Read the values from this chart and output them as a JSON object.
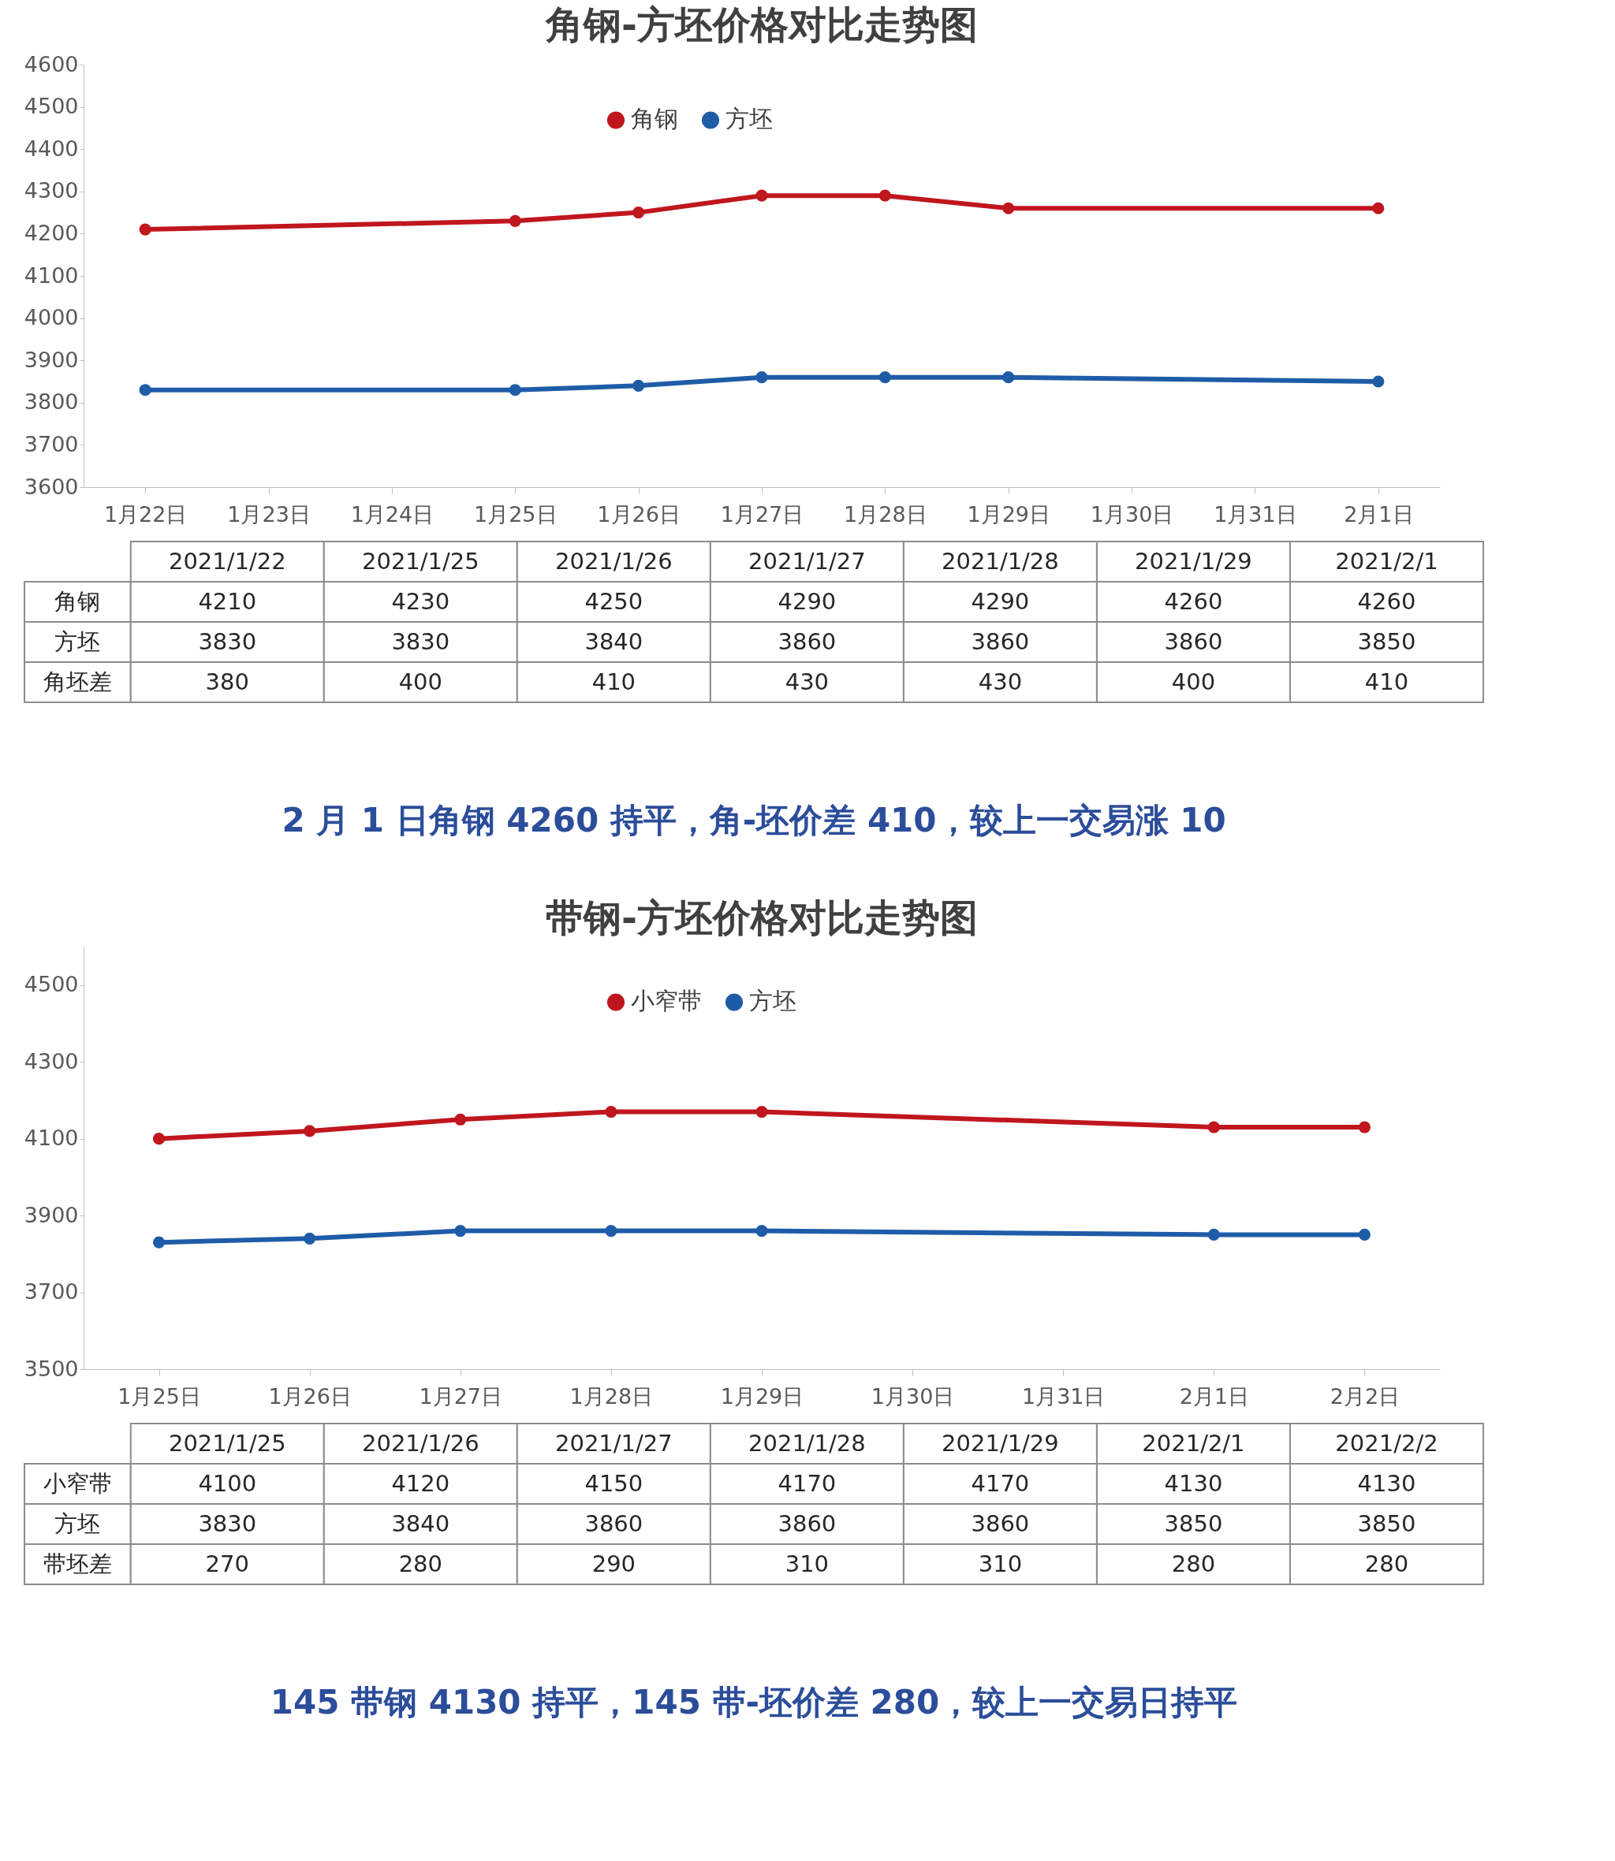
{
  "chart_data": [
    {
      "type": "line",
      "title": "角钢-方坯价格对比走势图",
      "categories": [
        "1月22日",
        "1月23日",
        "1月24日",
        "1月25日",
        "1月26日",
        "1月27日",
        "1月28日",
        "1月29日",
        "1月30日",
        "1月31日",
        "2月1日"
      ],
      "series": [
        {
          "name": "角钢",
          "color": "#c0161e",
          "x": [
            "1月22日",
            "1月25日",
            "1月26日",
            "1月27日",
            "1月28日",
            "1月29日",
            "2月1日"
          ],
          "values": [
            4210,
            4230,
            4250,
            4290,
            4290,
            4260,
            4260
          ]
        },
        {
          "name": "方坯",
          "color": "#1f5ca8",
          "x": [
            "1月22日",
            "1月25日",
            "1月26日",
            "1月27日",
            "1月28日",
            "1月29日",
            "2月1日"
          ],
          "values": [
            3830,
            3830,
            3840,
            3860,
            3860,
            3860,
            3850
          ]
        }
      ],
      "ylim": [
        3600,
        4600
      ],
      "yticks": [
        3600,
        3700,
        3800,
        3900,
        4000,
        4100,
        4200,
        4300,
        4400,
        4500,
        4600
      ],
      "legend": "top",
      "marker": "circle",
      "line_style": "solid"
    },
    {
      "type": "other",
      "categories": [
        "2021/1/22",
        "2021/1/25",
        "2021/1/26",
        "2021/1/27",
        "2021/1/28",
        "2021/1/29",
        "2021/2/1"
      ],
      "series": [
        {
          "name": "角钢",
          "values": [
            4210,
            4230,
            4250,
            4290,
            4290,
            4260,
            4260
          ]
        },
        {
          "name": "方坯",
          "values": [
            3830,
            3830,
            3840,
            3860,
            3860,
            3860,
            3850
          ]
        },
        {
          "name": "角坯差",
          "values": [
            380,
            400,
            410,
            430,
            430,
            400,
            410
          ]
        }
      ],
      "data_labels": true,
      "legend": "left",
      "annotations": [
        "2 月 1 日角钢 4260 持平，角-坯价差 410，较上一交易涨 10"
      ]
    },
    {
      "type": "line",
      "title": "带钢-方坯价格对比走势图",
      "categories": [
        "1月25日",
        "1月26日",
        "1月27日",
        "1月28日",
        "1月29日",
        "1月30日",
        "1月31日",
        "2月1日",
        "2月2日"
      ],
      "series": [
        {
          "name": "小窄带",
          "color": "#c0161e",
          "x": [
            "1月25日",
            "1月26日",
            "1月27日",
            "1月28日",
            "1月29日",
            "2月1日",
            "2月2日"
          ],
          "values": [
            4100,
            4120,
            4150,
            4170,
            4170,
            4130,
            4130
          ]
        },
        {
          "name": "方坯",
          "color": "#1f5ca8",
          "x": [
            "1月25日",
            "1月26日",
            "1月27日",
            "1月28日",
            "1月29日",
            "2月1日",
            "2月2日"
          ],
          "values": [
            3830,
            3840,
            3860,
            3860,
            3860,
            3850,
            3850
          ]
        }
      ],
      "ylim": [
        3500,
        4600
      ],
      "yticks": [
        3500,
        3700,
        3900,
        4100,
        4300,
        4500
      ],
      "legend": "top",
      "marker": "circle",
      "line_style": "solid"
    },
    {
      "type": "other",
      "categories": [
        "2021/1/25",
        "2021/1/26",
        "2021/1/27",
        "2021/1/28",
        "2021/1/29",
        "2021/2/1",
        "2021/2/2"
      ],
      "series": [
        {
          "name": "小窄带",
          "values": [
            4100,
            4120,
            4150,
            4170,
            4170,
            4130,
            4130
          ]
        },
        {
          "name": "方坯",
          "values": [
            3830,
            3840,
            3860,
            3860,
            3860,
            3850,
            3850
          ]
        },
        {
          "name": "带坯差",
          "values": [
            270,
            280,
            290,
            310,
            310,
            280,
            280
          ]
        }
      ],
      "data_labels": true,
      "legend": "left",
      "annotations": [
        "145 带钢 4130 持平，145 带-坯价差 280，较上一交易日持平"
      ]
    }
  ]
}
